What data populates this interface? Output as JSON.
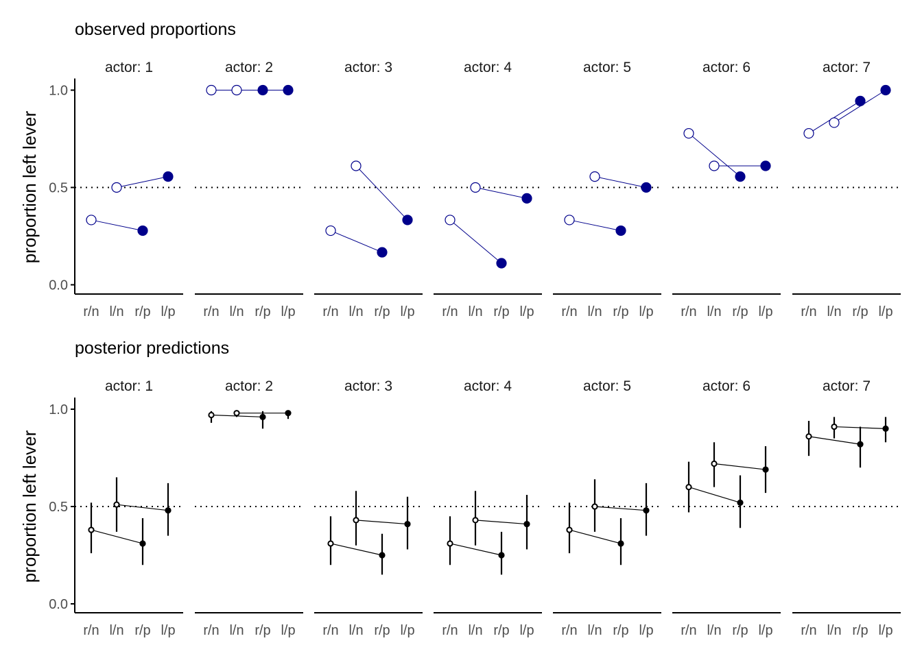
{
  "chart_data": [
    {
      "type": "scatter",
      "title": "observed proportions",
      "ylabel": "proportion left lever",
      "xlabel": "",
      "ylim": [
        0,
        1
      ],
      "yticks": [
        "0.0",
        "0.5",
        "1.0"
      ],
      "reference_line": 0.5,
      "categories": [
        "r/n",
        "l/n",
        "r/p",
        "l/p"
      ],
      "strip_prefix": "actor: ",
      "point_color": "#00008B",
      "line_color": "#00008B",
      "facets": [
        {
          "actor": "1",
          "values": [
            0.333,
            0.5,
            0.278,
            0.556
          ]
        },
        {
          "actor": "2",
          "values": [
            1.0,
            1.0,
            1.0,
            1.0
          ]
        },
        {
          "actor": "3",
          "values": [
            0.278,
            0.611,
            0.167,
            0.333
          ]
        },
        {
          "actor": "4",
          "values": [
            0.333,
            0.5,
            0.111,
            0.444
          ]
        },
        {
          "actor": "5",
          "values": [
            0.333,
            0.556,
            0.278,
            0.5
          ]
        },
        {
          "actor": "6",
          "values": [
            0.778,
            0.611,
            0.556,
            0.611
          ]
        },
        {
          "actor": "7",
          "values": [
            0.778,
            0.833,
            0.944,
            1.0
          ]
        }
      ]
    },
    {
      "type": "scatter",
      "title": "posterior predictions",
      "ylabel": "proportion left lever",
      "xlabel": "",
      "ylim": [
        0,
        1
      ],
      "yticks": [
        "0.0",
        "0.5",
        "1.0"
      ],
      "reference_line": 0.5,
      "categories": [
        "r/n",
        "l/n",
        "r/p",
        "l/p"
      ],
      "strip_prefix": "actor: ",
      "point_color": "#000000",
      "line_color": "#000000",
      "facets": [
        {
          "actor": "1",
          "values": [
            0.38,
            0.51,
            0.31,
            0.48
          ],
          "lower": [
            0.26,
            0.37,
            0.2,
            0.35
          ],
          "upper": [
            0.52,
            0.65,
            0.44,
            0.62
          ]
        },
        {
          "actor": "2",
          "values": [
            0.97,
            0.98,
            0.96,
            0.98
          ],
          "lower": [
            0.93,
            0.96,
            0.9,
            0.95
          ],
          "upper": [
            0.99,
            0.99,
            0.99,
            0.99
          ]
        },
        {
          "actor": "3",
          "values": [
            0.31,
            0.43,
            0.25,
            0.41
          ],
          "lower": [
            0.2,
            0.3,
            0.15,
            0.28
          ],
          "upper": [
            0.45,
            0.58,
            0.36,
            0.55
          ]
        },
        {
          "actor": "4",
          "values": [
            0.31,
            0.43,
            0.25,
            0.41
          ],
          "lower": [
            0.2,
            0.3,
            0.15,
            0.28
          ],
          "upper": [
            0.45,
            0.58,
            0.37,
            0.56
          ]
        },
        {
          "actor": "5",
          "values": [
            0.38,
            0.5,
            0.31,
            0.48
          ],
          "lower": [
            0.26,
            0.37,
            0.2,
            0.35
          ],
          "upper": [
            0.52,
            0.64,
            0.44,
            0.62
          ]
        },
        {
          "actor": "6",
          "values": [
            0.6,
            0.72,
            0.52,
            0.69
          ],
          "lower": [
            0.47,
            0.6,
            0.39,
            0.57
          ],
          "upper": [
            0.73,
            0.83,
            0.66,
            0.81
          ]
        },
        {
          "actor": "7",
          "values": [
            0.86,
            0.91,
            0.82,
            0.9
          ],
          "lower": [
            0.76,
            0.85,
            0.7,
            0.83
          ],
          "upper": [
            0.94,
            0.96,
            0.91,
            0.96
          ]
        }
      ]
    }
  ]
}
